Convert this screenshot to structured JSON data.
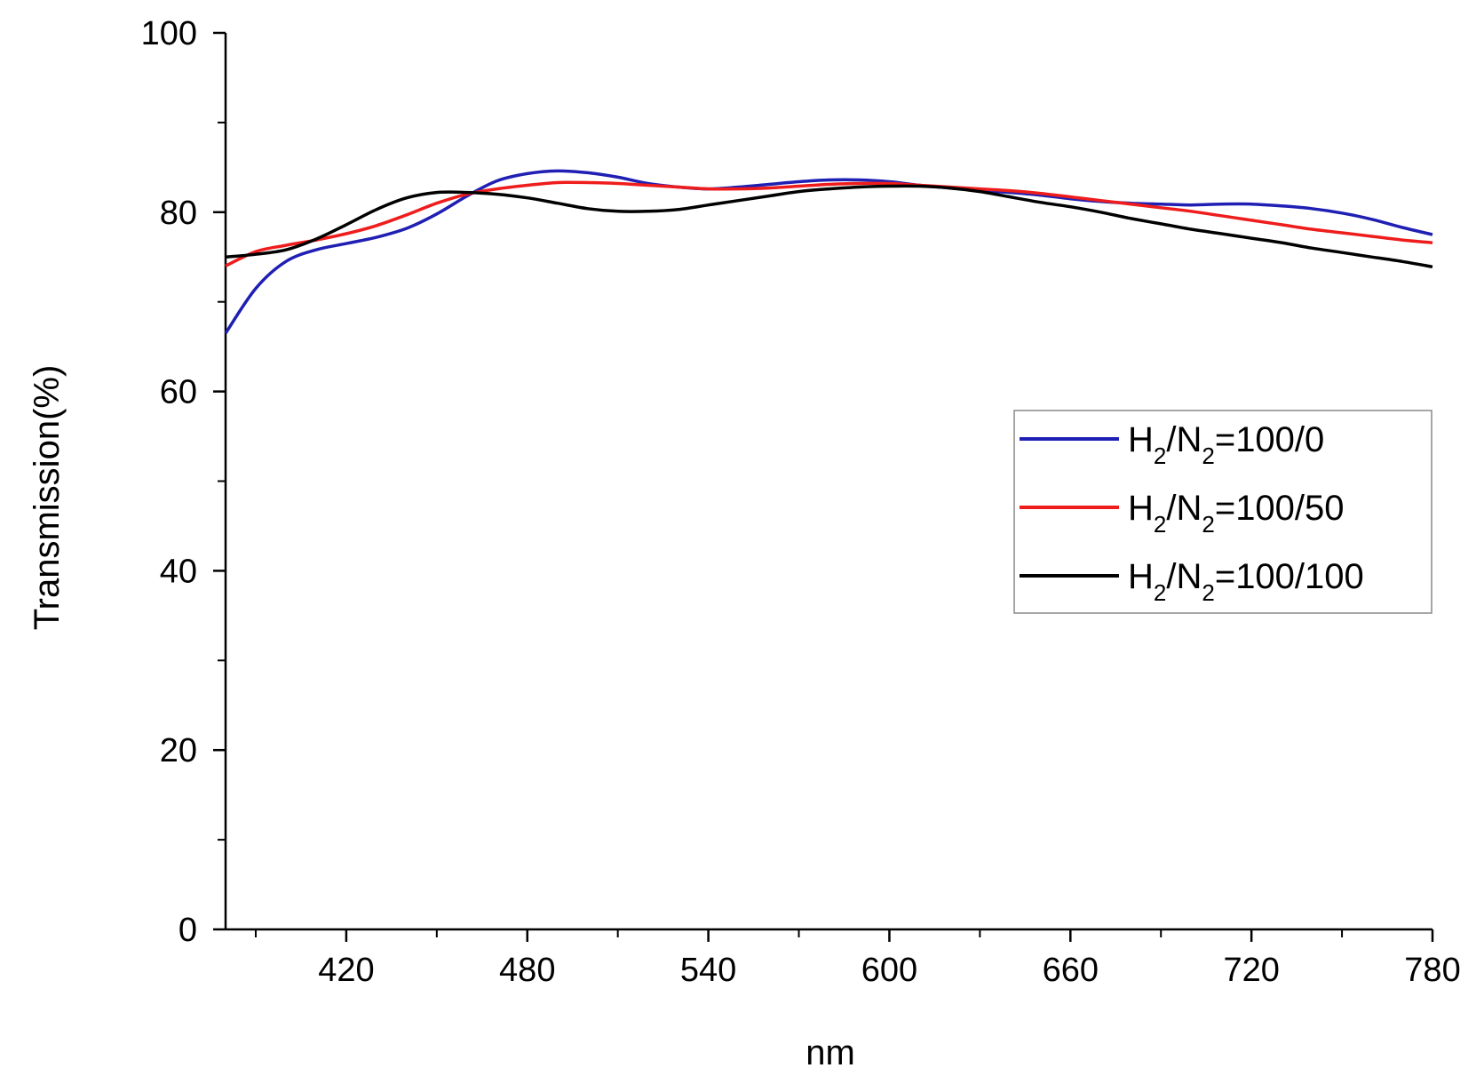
{
  "chart_data": {
    "type": "line",
    "title": "",
    "xlabel": "nm",
    "ylabel": "Transmission(%)",
    "xlim": [
      380,
      780
    ],
    "ylim": [
      0,
      100
    ],
    "x_major_ticks": [
      420,
      480,
      540,
      600,
      660,
      720,
      780
    ],
    "x_minor_ticks": [
      390,
      450,
      510,
      570,
      630,
      690,
      750
    ],
    "y_major_ticks": [
      0,
      20,
      40,
      60,
      80,
      100
    ],
    "y_minor_ticks": [
      10,
      30,
      50,
      70,
      90
    ],
    "grid": false,
    "legend_position": "right-middle",
    "series": [
      {
        "legend": {
          "base1": "H",
          "sub1": "2",
          "mid": "/N",
          "sub2": "2",
          "rest": "=100/0"
        },
        "color": "#1f1fb4",
        "x": [
          380,
          390,
          400,
          410,
          420,
          430,
          440,
          450,
          460,
          470,
          480,
          490,
          500,
          510,
          520,
          530,
          540,
          550,
          560,
          570,
          580,
          590,
          600,
          610,
          620,
          630,
          640,
          650,
          660,
          670,
          680,
          690,
          700,
          710,
          720,
          730,
          740,
          750,
          760,
          770,
          780
        ],
        "y": [
          66.5,
          71.5,
          74.5,
          75.8,
          76.5,
          77.2,
          78.2,
          79.8,
          81.8,
          83.5,
          84.3,
          84.6,
          84.4,
          83.9,
          83.2,
          82.8,
          82.6,
          82.8,
          83.1,
          83.4,
          83.6,
          83.6,
          83.4,
          83.0,
          82.7,
          82.4,
          82.2,
          81.9,
          81.5,
          81.2,
          81.0,
          80.9,
          80.8,
          80.9,
          80.9,
          80.7,
          80.4,
          79.9,
          79.2,
          78.3,
          77.5
        ]
      },
      {
        "legend": {
          "base1": "H",
          "sub1": "2",
          "mid": "/N",
          "sub2": "2",
          "rest": "=100/50"
        },
        "color": "#ef1c1c",
        "x": [
          380,
          390,
          400,
          410,
          420,
          430,
          440,
          450,
          460,
          470,
          480,
          490,
          500,
          510,
          520,
          530,
          540,
          550,
          560,
          570,
          580,
          590,
          600,
          610,
          620,
          630,
          640,
          650,
          660,
          670,
          680,
          690,
          700,
          710,
          720,
          730,
          740,
          750,
          760,
          770,
          780
        ],
        "y": [
          74.0,
          75.6,
          76.3,
          76.9,
          77.6,
          78.5,
          79.7,
          81.0,
          82.0,
          82.6,
          83.0,
          83.3,
          83.3,
          83.2,
          83.0,
          82.8,
          82.6,
          82.6,
          82.7,
          82.9,
          83.1,
          83.2,
          83.2,
          83.0,
          82.8,
          82.6,
          82.4,
          82.1,
          81.7,
          81.3,
          80.9,
          80.5,
          80.1,
          79.6,
          79.1,
          78.6,
          78.1,
          77.7,
          77.3,
          76.9,
          76.6
        ]
      },
      {
        "legend": {
          "base1": "H",
          "sub1": "2",
          "mid": "/N",
          "sub2": "2",
          "rest": "=100/100"
        },
        "color": "#000000",
        "x": [
          380,
          390,
          400,
          410,
          420,
          430,
          440,
          450,
          460,
          470,
          480,
          490,
          500,
          510,
          520,
          530,
          540,
          550,
          560,
          570,
          580,
          590,
          600,
          610,
          620,
          630,
          640,
          650,
          660,
          670,
          680,
          690,
          700,
          710,
          720,
          730,
          740,
          750,
          760,
          770,
          780
        ],
        "y": [
          75.0,
          75.3,
          75.8,
          77.0,
          78.6,
          80.3,
          81.6,
          82.2,
          82.2,
          82.0,
          81.6,
          81.0,
          80.4,
          80.1,
          80.1,
          80.3,
          80.8,
          81.3,
          81.8,
          82.3,
          82.6,
          82.8,
          82.9,
          82.9,
          82.7,
          82.3,
          81.7,
          81.1,
          80.6,
          80.0,
          79.3,
          78.7,
          78.1,
          77.6,
          77.1,
          76.6,
          76.0,
          75.5,
          75.0,
          74.5,
          73.9
        ]
      }
    ]
  }
}
